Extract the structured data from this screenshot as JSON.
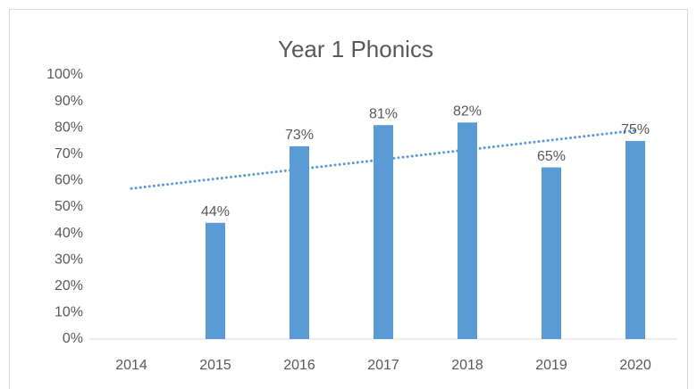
{
  "chart_data": {
    "type": "bar",
    "title": "Year 1 Phonics",
    "categories": [
      "2014",
      "2015",
      "2016",
      "2017",
      "2018",
      "2019",
      "2020"
    ],
    "values": [
      null,
      44,
      73,
      81,
      82,
      65,
      75
    ],
    "value_labels": [
      null,
      "44%",
      "73%",
      "81%",
      "82%",
      "65%",
      "75%"
    ],
    "color": "#5b9bd5",
    "ylim": [
      0,
      100
    ],
    "yticks": [
      {
        "value": 0,
        "label": "0%"
      },
      {
        "value": 10,
        "label": "10%"
      },
      {
        "value": 20,
        "label": "20%"
      },
      {
        "value": 30,
        "label": "30%"
      },
      {
        "value": 40,
        "label": "40%"
      },
      {
        "value": 50,
        "label": "50%"
      },
      {
        "value": 60,
        "label": "60%"
      },
      {
        "value": 70,
        "label": "70%"
      },
      {
        "value": 80,
        "label": "80%"
      },
      {
        "value": 90,
        "label": "90%"
      },
      {
        "value": 100,
        "label": "100%"
      }
    ],
    "grid": false,
    "trendline": {
      "values": [
        57,
        79
      ],
      "color": "#5b9bd5"
    }
  }
}
